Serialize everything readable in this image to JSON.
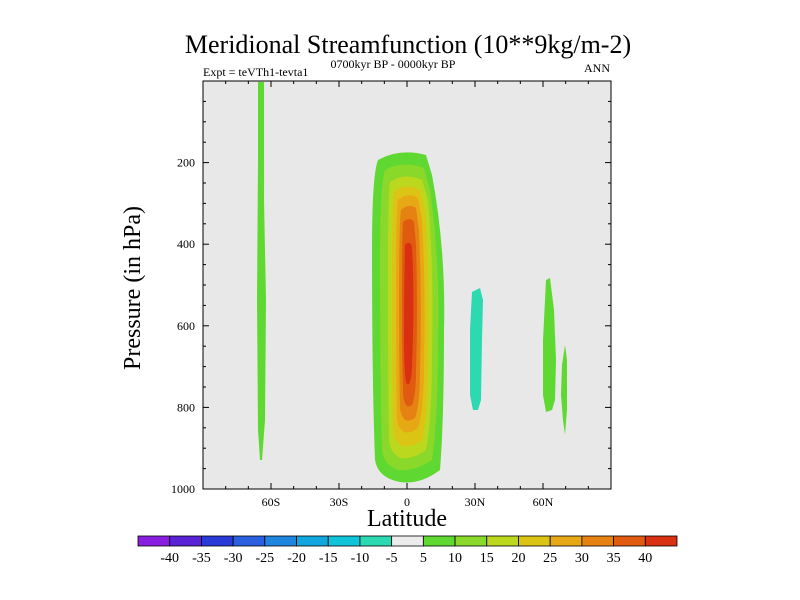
{
  "chart_data": {
    "type": "heatmap",
    "title": "Meridional Streamfunction (10**9kg/m-2)",
    "subtitle_left": "Expt = teVTh1-tevta1",
    "subtitle_center": "0700kyr BP - 0000kyr BP",
    "subtitle_right": "ANN",
    "xlabel": "Latitude",
    "ylabel": "Pressure (in hPa)",
    "xlim": [
      -90,
      90
    ],
    "ylim": [
      1000,
      0
    ],
    "x_ticks": [
      {
        "value": -60,
        "label": "60S"
      },
      {
        "value": -30,
        "label": "30S"
      },
      {
        "value": 0,
        "label": "0"
      },
      {
        "value": 30,
        "label": "30N"
      },
      {
        "value": 60,
        "label": "60N"
      }
    ],
    "y_ticks": [
      {
        "value": 200,
        "label": "200"
      },
      {
        "value": 400,
        "label": "400"
      },
      {
        "value": 600,
        "label": "600"
      },
      {
        "value": 800,
        "label": "800"
      },
      {
        "value": 1000,
        "label": "1000"
      }
    ],
    "colorbar": {
      "labels": [
        "-40",
        "-35",
        "-30",
        "-25",
        "-20",
        "-15",
        "-10",
        "-5",
        "5",
        "10",
        "15",
        "20",
        "25",
        "30",
        "35",
        "40"
      ],
      "colors": [
        "#8a1ee0",
        "#5a22d6",
        "#2a3ad8",
        "#2a60e0",
        "#1f86e0",
        "#12a6df",
        "#0fc4d8",
        "#2cd9b0",
        "#ececec",
        "#5fd832",
        "#8ad82a",
        "#bcd81e",
        "#dcc414",
        "#e6a814",
        "#e68212",
        "#e05a10",
        "#d83010"
      ]
    },
    "features": [
      {
        "name": "60S band",
        "value": 7.5,
        "lat_range": [
          -63,
          -60
        ],
        "p_range": [
          0,
          930
        ]
      },
      {
        "name": "equatorial cell",
        "max_value": 40,
        "lat_range": [
          -13,
          13
        ],
        "p_range": [
          175,
          980
        ]
      },
      {
        "name": "30N negative cell",
        "value": -7.5,
        "lat_range": [
          27,
          31
        ],
        "p_range": [
          510,
          810
        ]
      },
      {
        "name": "60N band",
        "value": 7.5,
        "lat_range": [
          58,
          62
        ],
        "p_range": [
          480,
          815
        ]
      },
      {
        "name": "70N band",
        "value": 7.5,
        "lat_range": [
          67,
          69
        ],
        "p_range": [
          650,
          870
        ]
      }
    ]
  }
}
